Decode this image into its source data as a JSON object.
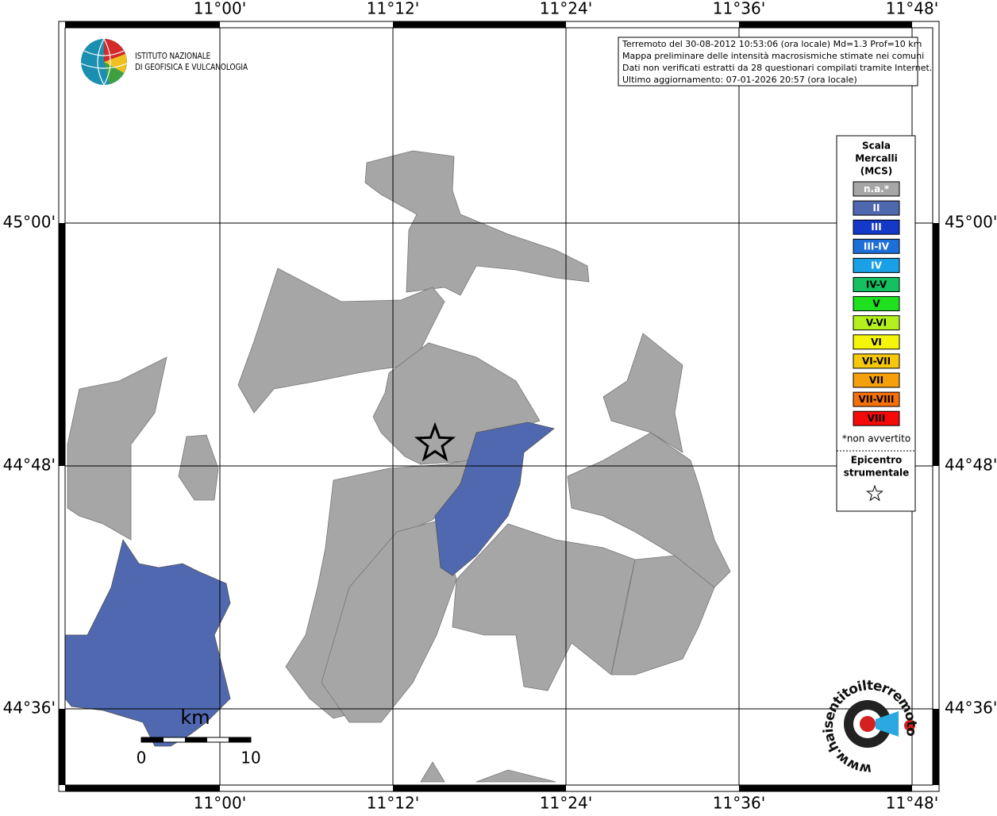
{
  "header": {
    "institute": [
      "ISTITUTO NAZIONALE",
      "DI GEOFISICA E VULCANOLOGIA"
    ],
    "info": [
      "Terremoto del 30-08-2012 10:53:06 (ora locale) Md=1.3 Prof=10 km",
      "Mappa preliminare delle intensità macrosismiche stimate nei comuni",
      "Dati non verificati estratti da 28 questionari compilati tramite Internet.",
      "Ultimo aggiornamento: 07-01-2026 20:57 (ora locale)"
    ]
  },
  "map": {
    "lon_labels": [
      "11°00'",
      "11°12'",
      "11°24'",
      "11°36'",
      "11°48'"
    ],
    "lat_labels": [
      "45°00'",
      "44°48'",
      "44°36'"
    ],
    "scale_bar": {
      "unit": "km",
      "labels": [
        "0",
        "10"
      ]
    }
  },
  "legend": {
    "title": [
      "Scala",
      "Mercalli",
      "(MCS)"
    ],
    "items": [
      {
        "label": "n.a.*",
        "color": "#a6a6a6"
      },
      {
        "label": "II",
        "color": "#5068b0"
      },
      {
        "label": "III",
        "color": "#1438c8"
      },
      {
        "label": "III-IV",
        "color": "#1e6ed8"
      },
      {
        "label": "IV",
        "color": "#1aa0e6"
      },
      {
        "label": "IV-V",
        "color": "#14c060"
      },
      {
        "label": "V",
        "color": "#1ee01e"
      },
      {
        "label": "V-VI",
        "color": "#b4f01e"
      },
      {
        "label": "VI",
        "color": "#f5f50a"
      },
      {
        "label": "VI-VII",
        "color": "#f5c80a"
      },
      {
        "label": "VII",
        "color": "#f5a00a"
      },
      {
        "label": "VII-VIII",
        "color": "#f5700a"
      },
      {
        "label": "VIII",
        "color": "#f50a0a"
      }
    ],
    "note": "*non avvertito",
    "epicenter": [
      "Epicentro",
      "strumentale"
    ]
  },
  "badge": {
    "text": "www.haisentitoilterremoto.it"
  }
}
